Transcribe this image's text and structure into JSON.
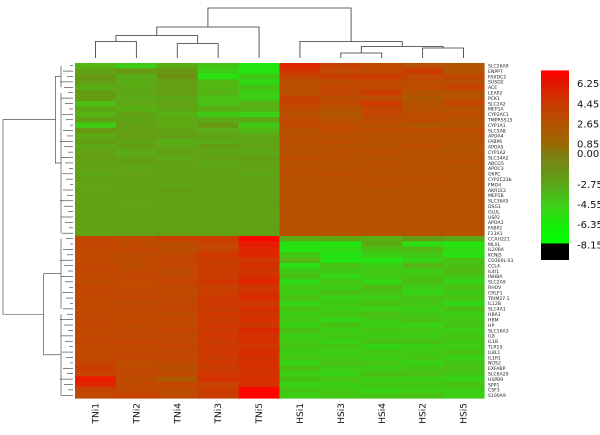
{
  "chart_data": {
    "type": "heatmap",
    "title": "",
    "xlabel": "",
    "ylabel": "",
    "columns": [
      "TNi1",
      "TNi2",
      "TNi4",
      "TNi3",
      "TNi5",
      "HSi1",
      "HSi3",
      "HSi4",
      "HSi2",
      "HSi5"
    ],
    "rows": [
      "SLC26A9",
      "ENPP7",
      "FAXDC2",
      "SUSD2",
      "ACE",
      "LEAP2",
      "PCK1",
      "SLC2A2",
      "MEP1A",
      "CYP2AC1",
      "TMPRSS15",
      "CYP1A1",
      "SLC5A8",
      "APOA4",
      "FABP6",
      "APOA5",
      "CYP1A2",
      "SLC34A2",
      "ABCG5",
      "APOC3",
      "G6PC",
      "CYP2C23b",
      "FMO4",
      "AKR1E2",
      "MEP1B",
      "SLC36A5",
      "DSG1",
      "GLUL",
      "USP2",
      "APOA1",
      "FABP2",
      "F13A1",
      "CCAH221",
      "MLXL",
      "IL20RA",
      "KCNJ5",
      "CD300L-S1",
      "CCL4",
      "IL4I1",
      "INHBA",
      "SLC2A9",
      "RHOV",
      "CRLF1",
      "TRIM27.1",
      "IL12B",
      "SLC4A1",
      "HBA1",
      "HBM",
      "HP",
      "SLC16A3",
      "IL8",
      "IL1B",
      "TLR15",
      "IL8L1",
      "IL1R1",
      "NOS2",
      "EXFABP",
      "SLC6A20",
      "HSPB9",
      "SPP1",
      "CSF3",
      "S100A9"
    ],
    "color_scale": {
      "ticks": [
        6.25,
        4.45,
        2.65,
        0.85,
        0.0,
        -2.75,
        -4.55,
        -6.35,
        -8.15
      ],
      "tick_labels": [
        "6.25",
        "4.45",
        "2.65",
        "0.850",
        "0.00",
        "-2.75",
        "-4.55",
        "-6.35",
        "-8.15"
      ],
      "range": [
        -9.5,
        8.0
      ],
      "colors": [
        "#ffffff",
        "#ff0000",
        "#d42f00",
        "#c04a00",
        "#a85a00",
        "#7a7a0a",
        "#55b30f",
        "#2ed918",
        "#08f000",
        "#000000"
      ]
    },
    "matrix": [
      [
        -4.6,
        -5.5,
        -4.0,
        -5.2,
        -6.6,
        6.4,
        4.8,
        4.1,
        3.2,
        2.9
      ],
      [
        -3.5,
        -2.9,
        -2.7,
        -5.6,
        -6.7,
        5.6,
        4.0,
        4.2,
        5.3,
        2.7
      ],
      [
        -2.9,
        -4.1,
        -2.3,
        -6.4,
        -5.4,
        4.6,
        5.0,
        5.4,
        4.2,
        4.4
      ],
      [
        -3.2,
        -4.1,
        -3.4,
        -4.6,
        -6.0,
        3.6,
        4.0,
        4.1,
        3.8,
        3.6
      ],
      [
        -4.2,
        -3.9,
        -3.2,
        -4.7,
        -5.1,
        3.6,
        4.5,
        4.1,
        3.9,
        4.8
      ],
      [
        -3.1,
        -3.8,
        -3.2,
        -4.4,
        -5.5,
        3.4,
        4.4,
        5.2,
        2.9,
        3.0
      ],
      [
        -3.1,
        -4.1,
        -3.7,
        -4.9,
        -5.6,
        4.8,
        3.5,
        3.6,
        2.6,
        3.1
      ],
      [
        -5.0,
        -3.8,
        -3.4,
        -5.0,
        -4.4,
        4.6,
        4.2,
        5.4,
        3.0,
        4.5
      ],
      [
        -3.7,
        -4.3,
        -3.7,
        -4.1,
        -4.4,
        3.8,
        3.0,
        4.5,
        3.2,
        3.0
      ],
      [
        -4.4,
        -3.4,
        -4.2,
        -5.4,
        -5.7,
        3.4,
        2.5,
        4.4,
        3.8,
        3.7
      ],
      [
        -3.4,
        -3.7,
        -3.8,
        -4.0,
        -3.8,
        3.9,
        3.1,
        3.9,
        3.9,
        3.0
      ],
      [
        -5.5,
        -3.3,
        -4.0,
        -3.0,
        -5.3,
        4.1,
        3.9,
        3.3,
        2.5,
        2.9
      ],
      [
        -3.0,
        -3.4,
        -3.6,
        -4.1,
        -4.8,
        3.2,
        3.9,
        3.7,
        3.6,
        3.8
      ],
      [
        -4.0,
        -3.2,
        -3.3,
        -3.5,
        -3.8,
        3.6,
        3.2,
        3.2,
        3.0,
        3.4
      ],
      [
        -3.3,
        -3.6,
        -4.2,
        -4.0,
        -3.6,
        3.5,
        3.8,
        3.4,
        3.2,
        3.3
      ],
      [
        -3.8,
        -3.3,
        -3.9,
        -3.2,
        -3.5,
        3.4,
        3.0,
        3.1,
        3.7,
        2.8
      ],
      [
        -3.5,
        -4.0,
        -3.4,
        -3.7,
        -3.9,
        3.2,
        3.5,
        3.6,
        3.0,
        3.1
      ],
      [
        -3.2,
        -3.5,
        -3.8,
        -3.4,
        -3.3,
        3.7,
        3.3,
        3.0,
        3.3,
        3.2
      ],
      [
        -3.6,
        -3.2,
        -3.5,
        -3.9,
        -3.6,
        3.0,
        3.4,
        3.4,
        3.1,
        3.5
      ],
      [
        -3.4,
        -3.7,
        -3.3,
        -3.6,
        -3.4,
        3.3,
        3.1,
        3.5,
        3.4,
        3.0
      ],
      [
        -3.7,
        -3.4,
        -3.6,
        -3.3,
        -3.7,
        3.5,
        3.6,
        3.2,
        3.2,
        3.3
      ],
      [
        -3.3,
        -3.6,
        -3.4,
        -3.5,
        -3.5,
        3.1,
        3.3,
        3.3,
        3.5,
        3.4
      ],
      [
        -3.5,
        -3.3,
        -3.7,
        -3.4,
        -3.3,
        3.4,
        3.2,
        3.6,
        3.3,
        3.2
      ],
      [
        -3.6,
        -3.5,
        -3.3,
        -3.6,
        -3.6,
        3.3,
        3.4,
        3.1,
        3.4,
        3.3
      ],
      [
        -3.4,
        -3.4,
        -3.5,
        -3.3,
        -3.4,
        3.2,
        3.3,
        3.4,
        3.2,
        3.4
      ],
      [
        -3.5,
        -3.6,
        -3.4,
        -3.5,
        -3.5,
        3.4,
        3.2,
        3.3,
        3.3,
        3.2
      ],
      [
        -3.3,
        -3.5,
        -3.6,
        -3.4,
        -3.3,
        3.3,
        3.4,
        3.2,
        3.4,
        3.3
      ],
      [
        -3.6,
        -3.3,
        -3.3,
        -3.6,
        -3.6,
        3.2,
        3.3,
        3.4,
        3.2,
        3.4
      ],
      [
        -3.4,
        -3.6,
        -3.5,
        -3.3,
        -3.4,
        3.4,
        3.2,
        3.3,
        3.3,
        3.3
      ],
      [
        -3.5,
        -3.4,
        -3.4,
        -3.5,
        -3.5,
        3.3,
        3.4,
        3.2,
        3.4,
        3.2
      ],
      [
        -3.3,
        -3.5,
        -3.6,
        -3.4,
        -3.3,
        3.2,
        3.3,
        3.4,
        3.3,
        3.4
      ],
      [
        -3.6,
        -3.3,
        -3.3,
        -3.6,
        -3.6,
        3.4,
        3.2,
        3.3,
        3.2,
        3.3
      ],
      [
        4.4,
        4.0,
        4.9,
        5.2,
        7.5,
        -4.0,
        -3.7,
        -4.3,
        -3.1,
        -3.7
      ],
      [
        4.7,
        3.8,
        3.5,
        4.7,
        6.7,
        -6.3,
        -6.6,
        -3.9,
        -6.2,
        -6.6
      ],
      [
        4.0,
        4.6,
        3.5,
        4.3,
        6.5,
        -6.6,
        -6.0,
        -5.1,
        -4.7,
        -6.0
      ],
      [
        4.1,
        3.7,
        4.3,
        5.6,
        6.4,
        -5.3,
        -6.5,
        -5.5,
        -5.4,
        -6.4
      ],
      [
        3.9,
        4.1,
        4.5,
        5.0,
        5.7,
        -4.6,
        -6.6,
        -6.4,
        -5.8,
        -5.1
      ],
      [
        4.5,
        3.7,
        4.6,
        5.1,
        5.9,
        -6.3,
        -5.0,
        -5.6,
        -4.6,
        -5.1
      ],
      [
        4.3,
        4.2,
        3.8,
        5.2,
        5.5,
        -5.4,
        -5.4,
        -5.3,
        -5.5,
        -4.7
      ],
      [
        4.0,
        4.4,
        4.3,
        5.0,
        6.1,
        -5.1,
        -5.9,
        -5.4,
        -5.2,
        -5.3
      ],
      [
        3.8,
        4.0,
        4.7,
        5.7,
        6.5,
        -6.1,
        -5.2,
        -5.9,
        -4.9,
        -5.7
      ],
      [
        4.6,
        3.9,
        4.2,
        4.8,
        5.6,
        -5.3,
        -5.5,
        -4.8,
        -5.5,
        -5.0
      ],
      [
        4.2,
        4.3,
        3.9,
        5.1,
        5.9,
        -5.6,
        -5.1,
        -5.2,
        -5.8,
        -5.4
      ],
      [
        4.0,
        4.5,
        4.4,
        5.3,
        6.3,
        -5.0,
        -5.7,
        -5.5,
        -5.1,
        -5.2
      ],
      [
        4.4,
        3.8,
        4.0,
        5.6,
        5.4,
        -5.8,
        -5.3,
        -5.1,
        -5.3,
        -5.9
      ],
      [
        3.9,
        4.2,
        4.6,
        5.0,
        6.2,
        -5.2,
        -5.6,
        -5.7,
        -5.6,
        -5.0
      ],
      [
        4.3,
        4.1,
        3.8,
        5.4,
        5.7,
        -5.5,
        -5.2,
        -5.0,
        -5.4,
        -5.5
      ],
      [
        4.1,
        4.4,
        4.3,
        5.1,
        6.0,
        -5.3,
        -5.8,
        -5.4,
        -5.0,
        -5.3
      ],
      [
        4.5,
        3.9,
        4.1,
        5.5,
        5.5,
        -5.7,
        -5.1,
        -5.6,
        -5.7,
        -5.1
      ],
      [
        4.0,
        4.3,
        4.5,
        5.2,
        6.4,
        -5.1,
        -5.5,
        -5.2,
        -5.3,
        -5.6
      ],
      [
        4.2,
        4.0,
        3.9,
        5.6,
        5.8,
        -5.6,
        -5.3,
        -5.5,
        -5.5,
        -5.2
      ],
      [
        4.4,
        4.5,
        4.2,
        5.0,
        6.1,
        -5.4,
        -5.7,
        -5.1,
        -5.1,
        -5.4
      ],
      [
        3.9,
        4.1,
        4.6,
        5.3,
        5.6,
        -5.2,
        -5.2,
        -5.8,
        -5.6,
        -5.5
      ],
      [
        4.3,
        4.2,
        4.0,
        5.5,
        6.3,
        -5.5,
        -5.6,
        -5.3,
        -5.4,
        -5.1
      ],
      [
        4.1,
        4.4,
        4.4,
        5.1,
        5.9,
        -5.3,
        -5.4,
        -5.6,
        -5.2,
        -5.6
      ],
      [
        4.6,
        3.8,
        4.1,
        5.4,
        6.0,
        -5.8,
        -5.1,
        -5.2,
        -5.7,
        -5.3
      ],
      [
        5.2,
        4.0,
        3.1,
        5.0,
        6.1,
        -5.0,
        -5.5,
        -5.5,
        -5.3,
        -5.0
      ],
      [
        4.6,
        4.3,
        4.2,
        5.7,
        5.8,
        -5.6,
        -5.7,
        -5.1,
        -5.0,
        -5.4
      ],
      [
        6.8,
        3.7,
        2.2,
        5.8,
        6.0,
        -5.1,
        -5.2,
        -5.6,
        -5.5,
        -5.7
      ],
      [
        6.4,
        4.2,
        4.7,
        4.7,
        6.0,
        -5.7,
        -5.6,
        -5.3,
        -5.2,
        -5.1
      ],
      [
        4.4,
        4.0,
        3.7,
        5.3,
        7.6,
        -5.2,
        -5.4,
        -5.8,
        -5.6,
        -5.5
      ],
      [
        4.2,
        4.6,
        4.0,
        5.1,
        7.7,
        -5.5,
        -5.3,
        -5.2,
        -5.1,
        -5.6
      ]
    ],
    "column_dendrogram": [
      {
        "a": 0,
        "b": 1,
        "h": 0.33
      },
      {
        "a": 2,
        "b": 3,
        "h": 0.29
      },
      {
        "a": 10,
        "b": 11,
        "h": 0.45
      },
      {
        "a": 4,
        "b": 12,
        "h": 0.62
      },
      {
        "a": 6,
        "b": 7,
        "h": 0.1
      },
      {
        "a": 8,
        "b": 9,
        "h": 0.2
      },
      {
        "a": 14,
        "b": 15,
        "h": 0.23
      },
      {
        "a": 5,
        "b": 16,
        "h": 0.33
      },
      {
        "a": 13,
        "b": 17,
        "h": 1.0
      }
    ],
    "row_dendrogram": [
      {
        "a": [
          0,
          31
        ],
        "b": [
          32,
          61
        ],
        "h": 1.0
      },
      {
        "a": [
          0,
          4
        ],
        "b": [
          5,
          31
        ],
        "h": 0.25
      },
      {
        "a": [
          32,
          45
        ],
        "b": [
          46,
          61
        ],
        "h": 0.42
      }
    ]
  }
}
